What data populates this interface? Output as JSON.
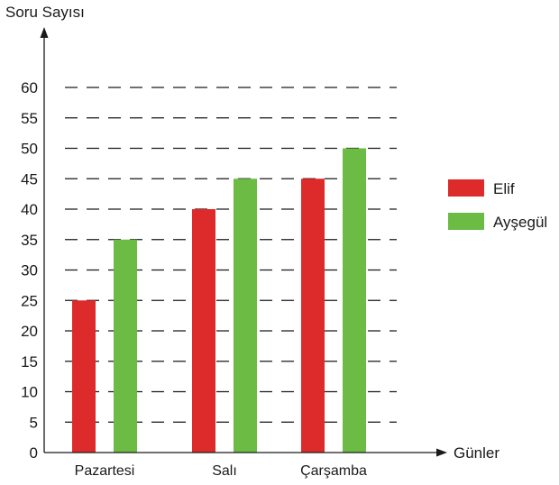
{
  "chart_data": {
    "type": "bar",
    "ylabel": "Soru Sayısı",
    "xlabel": "Günler",
    "categories": [
      "Pazartesi",
      "Salı",
      "Çarşamba"
    ],
    "series": [
      {
        "name": "Elif",
        "color": "#dd2a2a",
        "values": [
          25,
          40,
          45
        ]
      },
      {
        "name": "Ayşegül",
        "color": "#6cbb45",
        "values": [
          35,
          45,
          50
        ]
      }
    ],
    "yticks": [
      0,
      5,
      10,
      15,
      20,
      25,
      30,
      35,
      40,
      45,
      50,
      55,
      60
    ],
    "ylim": [
      0,
      60
    ],
    "grid": "dashed",
    "legend": "right"
  }
}
